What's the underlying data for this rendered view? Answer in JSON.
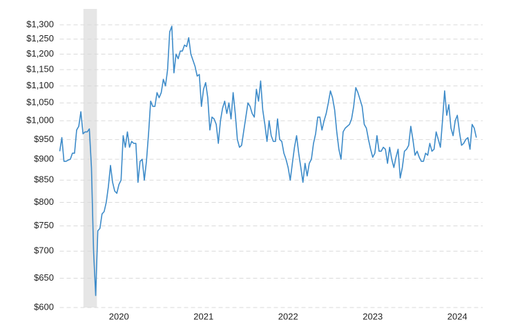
{
  "chart_data": {
    "type": "line",
    "x": [
      2019.8,
      2019.825,
      2019.85,
      2019.875,
      2019.9,
      2019.925,
      2019.95,
      2019.975,
      2020,
      2020.025,
      2020.05,
      2020.075,
      2020.1,
      2020.125,
      2020.15,
      2020.175,
      2020.2,
      2020.225,
      2020.25,
      2020.275,
      2020.3,
      2020.325,
      2020.35,
      2020.375,
      2020.4,
      2020.425,
      2020.45,
      2020.475,
      2020.5,
      2020.525,
      2020.55,
      2020.575,
      2020.6,
      2020.625,
      2020.65,
      2020.675,
      2020.7,
      2020.725,
      2020.75,
      2020.775,
      2020.8,
      2020.825,
      2020.85,
      2020.875,
      2020.9,
      2020.925,
      2020.95,
      2020.975,
      2021,
      2021.025,
      2021.05,
      2021.075,
      2021.1,
      2021.125,
      2021.15,
      2021.175,
      2021.2,
      2021.225,
      2021.25,
      2021.275,
      2021.3,
      2021.325,
      2021.35,
      2021.375,
      2021.4,
      2021.425,
      2021.45,
      2021.475,
      2021.5,
      2021.525,
      2021.55,
      2021.575,
      2021.6,
      2021.625,
      2021.65,
      2021.675,
      2021.7,
      2021.725,
      2021.75,
      2021.775,
      2021.8,
      2021.825,
      2021.85,
      2021.875,
      2021.9,
      2021.925,
      2021.95,
      2021.975,
      2022,
      2022.025,
      2022.05,
      2022.075,
      2022.1,
      2022.125,
      2022.15,
      2022.175,
      2022.2,
      2022.225,
      2022.25,
      2022.275,
      2022.3,
      2022.325,
      2022.35,
      2022.375,
      2022.4,
      2022.425,
      2022.45,
      2022.475,
      2022.5,
      2022.525,
      2022.55,
      2022.575,
      2022.6,
      2022.625,
      2022.65,
      2022.675,
      2022.7,
      2022.725,
      2022.75,
      2022.775,
      2022.8,
      2022.825,
      2022.85,
      2022.875,
      2022.9,
      2022.925,
      2022.95,
      2022.975,
      2023,
      2023.025,
      2023.05,
      2023.075,
      2023.1,
      2023.125,
      2023.15,
      2023.175,
      2023.2,
      2023.225,
      2023.25,
      2023.275,
      2023.3,
      2023.325,
      2023.35,
      2023.375,
      2023.4,
      2023.425,
      2023.45,
      2023.475,
      2023.5,
      2023.525,
      2023.55,
      2023.575,
      2023.6,
      2023.625,
      2023.65,
      2023.675,
      2023.7,
      2023.725,
      2023.75,
      2023.775,
      2023.8,
      2023.825,
      2023.85,
      2023.875,
      2023.9,
      2023.925,
      2023.95,
      2023.975,
      2024,
      2024.025,
      2024.05,
      2024.075,
      2024.1,
      2024.125,
      2024.15,
      2024.175,
      2024.2,
      2024.225,
      2024.25,
      2024.275,
      2024.3,
      2024.325,
      2024.35,
      2024.375,
      2024.4,
      2024.425,
      2024.45,
      2024.475,
      2024.5,
      2024.525,
      2024.55,
      2024.575,
      2024.6,
      2024.625,
      2024.65,
      2024.675,
      2024.7,
      2024.725
    ],
    "values": [
      920,
      955,
      895,
      895,
      898,
      900,
      915,
      915,
      975,
      985,
      1025,
      965,
      970,
      970,
      978,
      880,
      700,
      620,
      740,
      745,
      775,
      780,
      800,
      835,
      885,
      845,
      825,
      820,
      840,
      850,
      960,
      930,
      970,
      930,
      945,
      940,
      940,
      845,
      895,
      900,
      850,
      895,
      965,
      1055,
      1040,
      1040,
      1080,
      1065,
      1080,
      1120,
      1100,
      1150,
      1275,
      1295,
      1140,
      1200,
      1185,
      1210,
      1210,
      1230,
      1225,
      1255,
      1200,
      1180,
      1160,
      1130,
      1135,
      1040,
      1090,
      1110,
      1065,
      975,
      1010,
      1005,
      990,
      940,
      1000,
      1035,
      1055,
      1020,
      1050,
      1005,
      1080,
      1020,
      950,
      930,
      935,
      972,
      1010,
      1050,
      1040,
      1020,
      1010,
      1090,
      1055,
      1115,
      1030,
      990,
      945,
      1000,
      960,
      945,
      945,
      1005,
      950,
      945,
      915,
      900,
      880,
      850,
      890,
      930,
      960,
      915,
      880,
      845,
      890,
      860,
      890,
      900,
      940,
      965,
      1010,
      1010,
      975,
      1000,
      1020,
      1050,
      1085,
      1065,
      1030,
      970,
      925,
      900,
      970,
      980,
      985,
      990,
      1005,
      1040,
      1095,
      1080,
      1060,
      1040,
      990,
      980,
      950,
      925,
      905,
      915,
      960,
      920,
      920,
      930,
      925,
      890,
      930,
      900,
      880,
      905,
      925,
      855,
      880,
      920,
      925,
      935,
      985,
      950,
      910,
      920,
      905,
      895,
      895,
      915,
      910,
      940,
      920,
      925,
      970,
      950,
      930,
      1000,
      1085,
      1015,
      1045,
      980,
      960,
      1000,
      1015,
      970,
      935,
      940,
      950,
      955,
      925,
      990,
      980,
      955
    ],
    "color": "#3d8bc9",
    "xlim": [
      2019.8,
      2024.8
    ],
    "xticks": [
      {
        "value": 2020.5,
        "label": "2020"
      },
      {
        "value": 2021.5,
        "label": "2021"
      },
      {
        "value": 2022.5,
        "label": "2022"
      },
      {
        "value": 2023.5,
        "label": "2023"
      },
      {
        "value": 2024.5,
        "label": "2024"
      }
    ],
    "ylim": [
      600,
      1300
    ],
    "yticks": [
      {
        "value": 600,
        "label": "$600"
      },
      {
        "value": 650,
        "label": "$650"
      },
      {
        "value": 700,
        "label": "$700"
      },
      {
        "value": 750,
        "label": "$750"
      },
      {
        "value": 800,
        "label": "$800"
      },
      {
        "value": 850,
        "label": "$850"
      },
      {
        "value": 900,
        "label": "$900"
      },
      {
        "value": 950,
        "label": "$950"
      },
      {
        "value": 1000,
        "label": "$1,000"
      },
      {
        "value": 1050,
        "label": "$1,050"
      },
      {
        "value": 1100,
        "label": "$1,100"
      },
      {
        "value": 1150,
        "label": "$1,150"
      },
      {
        "value": 1200,
        "label": "$1,200"
      },
      {
        "value": 1250,
        "label": "$1,250"
      },
      {
        "value": 1300,
        "label": "$1,300"
      }
    ],
    "log_scale": true,
    "grid": true,
    "shaded_ranges": [
      [
        2020.08,
        2020.24
      ]
    ]
  }
}
